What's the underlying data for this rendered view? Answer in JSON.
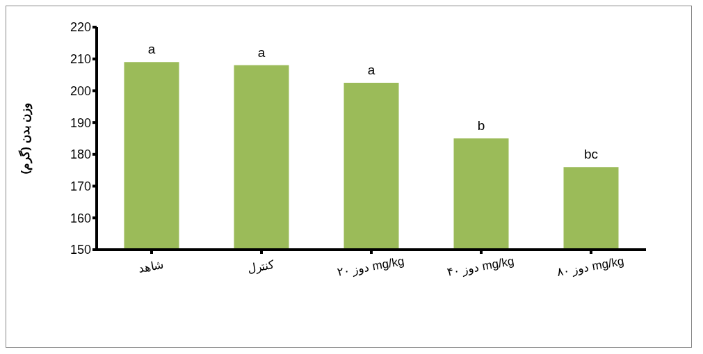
{
  "chart_data": {
    "type": "bar",
    "ylabel": "وزن بدن (گرم)",
    "categories": [
      "شاهد",
      "کنترل",
      "دوز ۲۰ mg/kg",
      "دوز ۴۰ mg/kg",
      "دوز ۸۰ mg/kg"
    ],
    "values": [
      209,
      208,
      202.5,
      185,
      176
    ],
    "color": "#9bbb59",
    "ylim": [
      150,
      220
    ],
    "yticks": [
      150,
      160,
      170,
      180,
      190,
      200,
      210,
      220
    ],
    "grid": false,
    "annotations": [
      {
        "text": "a",
        "x": "شاهد",
        "y": 209
      },
      {
        "text": "a",
        "x": "کنترل",
        "y": 208
      },
      {
        "text": "a",
        "x": "دوز ۲۰ mg/kg",
        "y": 202.5
      },
      {
        "text": "b",
        "x": "دوز ۴۰ mg/kg",
        "y": 185
      },
      {
        "text": "bc",
        "x": "دوز ۸۰ mg/kg",
        "y": 176
      }
    ]
  }
}
